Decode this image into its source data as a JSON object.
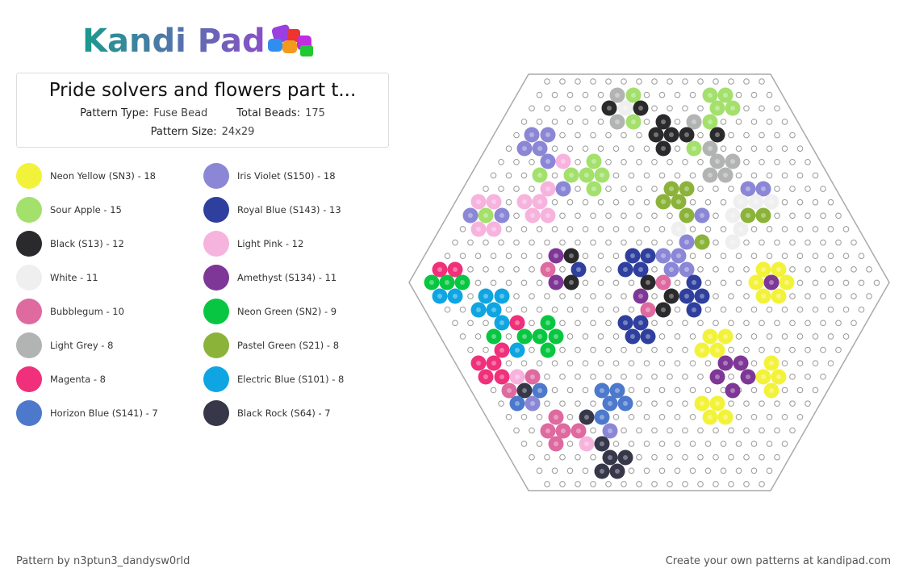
{
  "logo": {
    "text": "Kandi Pad"
  },
  "pattern": {
    "title": "Pride solvers and flowers part t...",
    "type_label": "Pattern Type:",
    "type_value": "Fuse Bead",
    "beads_label": "Total Beads:",
    "beads_value": "175",
    "size_label": "Pattern Size:",
    "size_value": "24x29"
  },
  "legend": [
    {
      "label": "Neon Yellow (SN3) - 18",
      "color": "#f3f23a"
    },
    {
      "label": "Sour Apple - 15",
      "color": "#a3e06c"
    },
    {
      "label": "Black (S13) - 12",
      "color": "#2a2a2c"
    },
    {
      "label": "White - 11",
      "color": "#efefef"
    },
    {
      "label": "Bubblegum - 10",
      "color": "#de6a9f"
    },
    {
      "label": "Light Grey - 8",
      "color": "#b2b3b3"
    },
    {
      "label": "Magenta - 8",
      "color": "#f0307a"
    },
    {
      "label": "Horizon Blue (S141) - 7",
      "color": "#4d79cc"
    },
    {
      "label": "Iris Violet (S150) - 18",
      "color": "#8b87d6"
    },
    {
      "label": "Royal Blue (S143) - 13",
      "color": "#2f3f9e"
    },
    {
      "label": "Light Pink - 12",
      "color": "#f6b3dd"
    },
    {
      "label": "Amethyst (S134) - 11",
      "color": "#7e3796"
    },
    {
      "label": "Neon Green (SN2) - 9",
      "color": "#08c641"
    },
    {
      "label": "Pastel Green (S21) - 8",
      "color": "#8bb33a"
    },
    {
      "label": "Electric Blue (S101) - 8",
      "color": "#0ea5e2"
    },
    {
      "label": "Black Rock (S64) - 7",
      "color": "#363749"
    }
  ],
  "footer": {
    "author": "Pattern by n3ptun3_dandysw0rld",
    "promo": "Create your own patterns at kandipad.com"
  }
}
